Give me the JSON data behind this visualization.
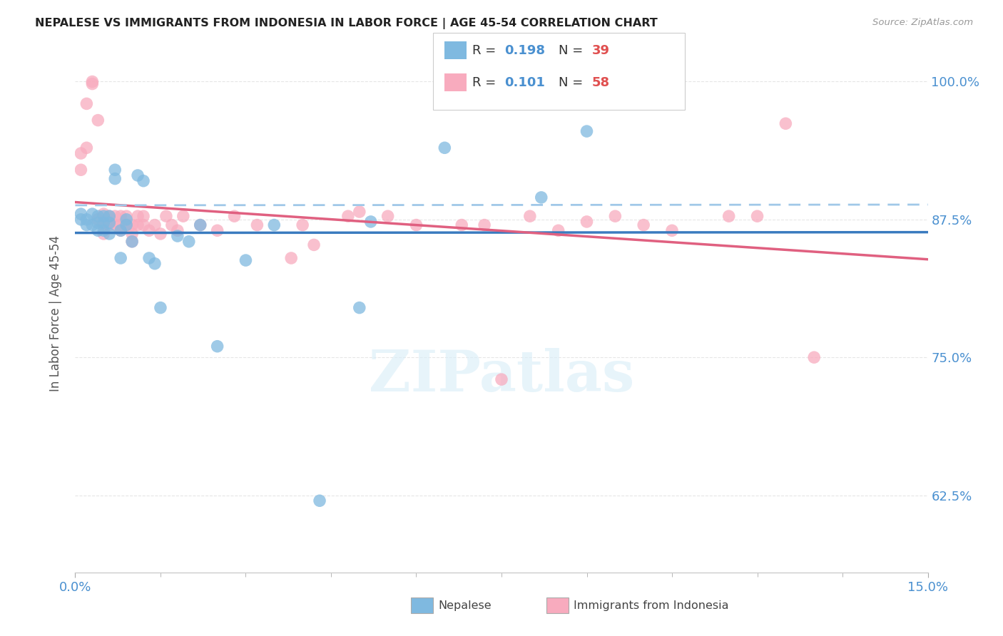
{
  "title": "NEPALESE VS IMMIGRANTS FROM INDONESIA IN LABOR FORCE | AGE 45-54 CORRELATION CHART",
  "source": "Source: ZipAtlas.com",
  "ylabel": "In Labor Force | Age 45-54",
  "xlim": [
    0.0,
    0.15
  ],
  "ylim": [
    0.555,
    1.025
  ],
  "ytick_labels": [
    "62.5%",
    "75.0%",
    "87.5%",
    "100.0%"
  ],
  "ytick_values": [
    0.625,
    0.75,
    0.875,
    1.0
  ],
  "blue_color": "#7fb9e0",
  "pink_color": "#f8abbe",
  "blue_line_color": "#3a7bbf",
  "pink_line_color": "#e06080",
  "blue_dash_color": "#a0c8e8",
  "right_axis_color": "#4a90d0",
  "nepalese_R": 0.198,
  "nepalese_N": 39,
  "indonesia_R": 0.101,
  "indonesia_N": 58,
  "nepalese_x": [
    0.001,
    0.001,
    0.002,
    0.002,
    0.003,
    0.003,
    0.004,
    0.004,
    0.004,
    0.005,
    0.005,
    0.005,
    0.006,
    0.006,
    0.006,
    0.007,
    0.007,
    0.008,
    0.008,
    0.009,
    0.009,
    0.01,
    0.011,
    0.012,
    0.013,
    0.014,
    0.015,
    0.018,
    0.02,
    0.022,
    0.025,
    0.03,
    0.035,
    0.043,
    0.05,
    0.052,
    0.065,
    0.082,
    0.09
  ],
  "nepalese_y": [
    0.88,
    0.875,
    0.875,
    0.87,
    0.88,
    0.87,
    0.878,
    0.872,
    0.865,
    0.878,
    0.872,
    0.865,
    0.878,
    0.872,
    0.862,
    0.92,
    0.912,
    0.865,
    0.84,
    0.875,
    0.87,
    0.855,
    0.915,
    0.91,
    0.84,
    0.835,
    0.795,
    0.86,
    0.855,
    0.87,
    0.76,
    0.838,
    0.87,
    0.62,
    0.795,
    0.873,
    0.94,
    0.895,
    0.955
  ],
  "indonesia_x": [
    0.001,
    0.001,
    0.002,
    0.002,
    0.003,
    0.003,
    0.004,
    0.004,
    0.005,
    0.005,
    0.005,
    0.006,
    0.006,
    0.007,
    0.007,
    0.008,
    0.008,
    0.008,
    0.009,
    0.009,
    0.01,
    0.01,
    0.01,
    0.011,
    0.011,
    0.012,
    0.012,
    0.013,
    0.014,
    0.015,
    0.016,
    0.017,
    0.018,
    0.019,
    0.022,
    0.025,
    0.028,
    0.032,
    0.038,
    0.04,
    0.042,
    0.048,
    0.05,
    0.055,
    0.06,
    0.068,
    0.072,
    0.075,
    0.08,
    0.085,
    0.09,
    0.095,
    0.1,
    0.105,
    0.115,
    0.12,
    0.125,
    0.13
  ],
  "indonesia_y": [
    0.92,
    0.935,
    0.94,
    0.98,
    1.0,
    0.998,
    0.965,
    0.875,
    0.88,
    0.87,
    0.862,
    0.878,
    0.87,
    0.878,
    0.87,
    0.87,
    0.878,
    0.865,
    0.878,
    0.87,
    0.87,
    0.862,
    0.855,
    0.878,
    0.87,
    0.878,
    0.87,
    0.865,
    0.87,
    0.862,
    0.878,
    0.87,
    0.865,
    0.878,
    0.87,
    0.865,
    0.878,
    0.87,
    0.84,
    0.87,
    0.852,
    0.878,
    0.882,
    0.878,
    0.87,
    0.87,
    0.87,
    0.73,
    0.878,
    0.865,
    0.873,
    0.878,
    0.87,
    0.865,
    0.878,
    0.878,
    0.962,
    0.75
  ],
  "watermark": "ZIPatlas",
  "background_color": "#ffffff",
  "grid_color": "#e0e0e0"
}
